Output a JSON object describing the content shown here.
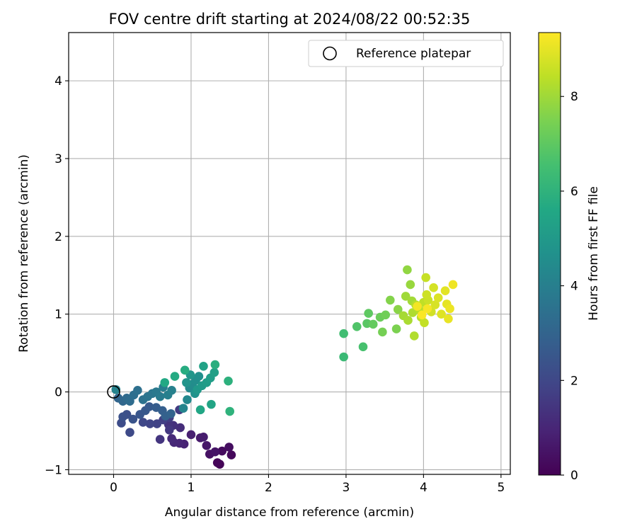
{
  "chart_data": {
    "type": "scatter",
    "title": "FOV centre drift starting at 2024/08/22 00:52:35",
    "xlabel": "Angular distance from reference (arcmin)",
    "ylabel": "Rotation from reference (arcmin)",
    "xlim": [
      -0.58,
      5.12
    ],
    "ylim": [
      -1.06,
      4.62
    ],
    "xticks": [
      0,
      1,
      2,
      3,
      4,
      5
    ],
    "yticks": [
      -1,
      0,
      1,
      2,
      3,
      4
    ],
    "grid": true,
    "legend": {
      "position": "top-right",
      "entries": [
        {
          "label": "Reference platepar",
          "marker": "open-circle"
        }
      ]
    },
    "reference_point": {
      "x": 0.0,
      "y": 0.0
    },
    "colorbar": {
      "label": "Hours from first FF file",
      "colormap": "viridis",
      "range": [
        0,
        9.35
      ],
      "ticks": [
        0,
        2,
        4,
        6,
        8
      ]
    },
    "series": [
      {
        "columns": [
          "x",
          "y",
          "hours"
        ],
        "points": [
          [
            1.37,
            -0.93,
            0.05
          ],
          [
            1.34,
            -0.91,
            0.12
          ],
          [
            1.52,
            -0.81,
            0.2
          ],
          [
            1.4,
            -0.76,
            0.28
          ],
          [
            1.49,
            -0.71,
            0.35
          ],
          [
            1.24,
            -0.8,
            0.42
          ],
          [
            1.31,
            -0.77,
            0.5
          ],
          [
            1.2,
            -0.69,
            0.58
          ],
          [
            1.12,
            -0.59,
            0.66
          ],
          [
            1.16,
            -0.58,
            0.74
          ],
          [
            1.0,
            -0.55,
            0.82
          ],
          [
            0.91,
            -0.67,
            0.9
          ],
          [
            0.85,
            -0.66,
            0.98
          ],
          [
            0.78,
            -0.65,
            1.05
          ],
          [
            0.75,
            -0.6,
            1.12
          ],
          [
            0.86,
            -0.46,
            1.2
          ],
          [
            0.77,
            -0.43,
            1.28
          ],
          [
            0.71,
            -0.42,
            1.36
          ],
          [
            0.6,
            -0.61,
            1.44
          ],
          [
            0.72,
            -0.49,
            1.52
          ],
          [
            0.85,
            -0.23,
            1.6
          ],
          [
            0.72,
            -0.33,
            1.68
          ],
          [
            0.64,
            -0.36,
            1.76
          ],
          [
            0.56,
            -0.41,
            1.84
          ],
          [
            0.47,
            -0.41,
            1.92
          ],
          [
            0.38,
            -0.39,
            2.0
          ],
          [
            0.21,
            -0.52,
            2.08
          ],
          [
            0.1,
            -0.4,
            2.16
          ],
          [
            0.17,
            -0.29,
            2.24
          ],
          [
            0.12,
            -0.32,
            2.32
          ],
          [
            0.25,
            -0.35,
            2.4
          ],
          [
            0.34,
            -0.29,
            2.48
          ],
          [
            0.41,
            -0.24,
            2.56
          ],
          [
            0.46,
            -0.19,
            2.64
          ],
          [
            0.55,
            -0.2,
            2.72
          ],
          [
            0.63,
            -0.24,
            2.8
          ],
          [
            0.67,
            -0.31,
            2.88
          ],
          [
            0.74,
            -0.28,
            2.96
          ],
          [
            0.06,
            -0.08,
            3.04
          ],
          [
            0.12,
            -0.12,
            3.12
          ],
          [
            0.17,
            -0.08,
            3.2
          ],
          [
            0.21,
            -0.12,
            3.28
          ],
          [
            0.26,
            -0.04,
            3.36
          ],
          [
            0.31,
            0.02,
            3.44
          ],
          [
            0.38,
            -0.1,
            3.52
          ],
          [
            0.44,
            -0.06,
            3.6
          ],
          [
            0.5,
            -0.02,
            3.68
          ],
          [
            0.55,
            0.0,
            3.76
          ],
          [
            0.6,
            -0.06,
            3.84
          ],
          [
            0.64,
            0.06,
            3.92
          ],
          [
            0.7,
            -0.04,
            4.0
          ],
          [
            0.75,
            0.02,
            4.08
          ],
          [
            0.03,
            0.03,
            4.16
          ],
          [
            0.9,
            -0.21,
            4.24
          ],
          [
            0.95,
            -0.1,
            4.32
          ],
          [
            0.98,
            0.05,
            4.4
          ],
          [
            1.02,
            0.1,
            4.48
          ],
          [
            1.06,
            0.15,
            4.56
          ],
          [
            1.1,
            0.2,
            4.64
          ],
          [
            1.05,
            -0.02,
            4.72
          ],
          [
            0.94,
            0.12,
            4.8
          ],
          [
            0.99,
            0.22,
            4.88
          ],
          [
            1.08,
            0.03,
            4.96
          ],
          [
            1.14,
            0.08,
            5.04
          ],
          [
            1.2,
            0.12,
            5.12
          ],
          [
            1.25,
            0.18,
            5.2
          ],
          [
            1.3,
            0.25,
            5.28
          ],
          [
            1.16,
            0.33,
            5.36
          ],
          [
            1.26,
            -0.16,
            5.44
          ],
          [
            1.12,
            -0.23,
            5.52
          ],
          [
            0.66,
            0.12,
            5.6
          ],
          [
            0.79,
            0.2,
            5.68
          ],
          [
            0.92,
            0.28,
            5.76
          ],
          [
            1.31,
            0.35,
            5.84
          ],
          [
            1.48,
            0.14,
            5.92
          ],
          [
            1.5,
            -0.25,
            6.0
          ],
          [
            2.97,
            0.45,
            6.3
          ],
          [
            2.97,
            0.75,
            6.45
          ],
          [
            3.22,
            0.58,
            6.6
          ],
          [
            3.14,
            0.84,
            6.75
          ],
          [
            3.27,
            0.88,
            6.9
          ],
          [
            3.29,
            1.01,
            7.0
          ],
          [
            3.35,
            0.87,
            7.1
          ],
          [
            3.44,
            0.96,
            7.2
          ],
          [
            3.51,
            0.99,
            7.3
          ],
          [
            3.47,
            0.77,
            7.4
          ],
          [
            3.65,
            0.81,
            7.5
          ],
          [
            3.57,
            1.18,
            7.6
          ],
          [
            3.67,
            1.06,
            7.7
          ],
          [
            3.79,
            1.57,
            7.8
          ],
          [
            3.83,
            1.38,
            7.9
          ],
          [
            3.77,
            1.23,
            8.0
          ],
          [
            3.85,
            1.17,
            8.05
          ],
          [
            3.74,
            0.98,
            8.1
          ],
          [
            3.8,
            0.92,
            8.15
          ],
          [
            3.86,
            1.02,
            8.2
          ],
          [
            3.88,
            0.72,
            8.25
          ],
          [
            3.9,
            1.12,
            8.3
          ],
          [
            3.95,
            1.05,
            8.35
          ],
          [
            3.97,
            0.96,
            8.4
          ],
          [
            4.0,
            1.15,
            8.45
          ],
          [
            4.01,
            0.89,
            8.5
          ],
          [
            4.03,
            1.47,
            8.55
          ],
          [
            4.06,
            1.18,
            8.6
          ],
          [
            4.04,
            1.25,
            8.65
          ],
          [
            4.1,
            1.03,
            8.7
          ],
          [
            4.13,
            1.34,
            8.75
          ],
          [
            4.15,
            1.12,
            8.8
          ],
          [
            4.19,
            1.21,
            8.85
          ],
          [
            4.23,
            1.0,
            8.9
          ],
          [
            4.28,
            1.3,
            8.95
          ],
          [
            4.3,
            1.13,
            9.0
          ],
          [
            4.32,
            0.94,
            9.05
          ],
          [
            4.34,
            1.07,
            9.1
          ],
          [
            4.38,
            1.38,
            9.15
          ],
          [
            3.92,
            1.1,
            9.2
          ],
          [
            4.05,
            1.07,
            9.25
          ],
          [
            3.98,
            0.99,
            9.3
          ]
        ]
      }
    ]
  }
}
